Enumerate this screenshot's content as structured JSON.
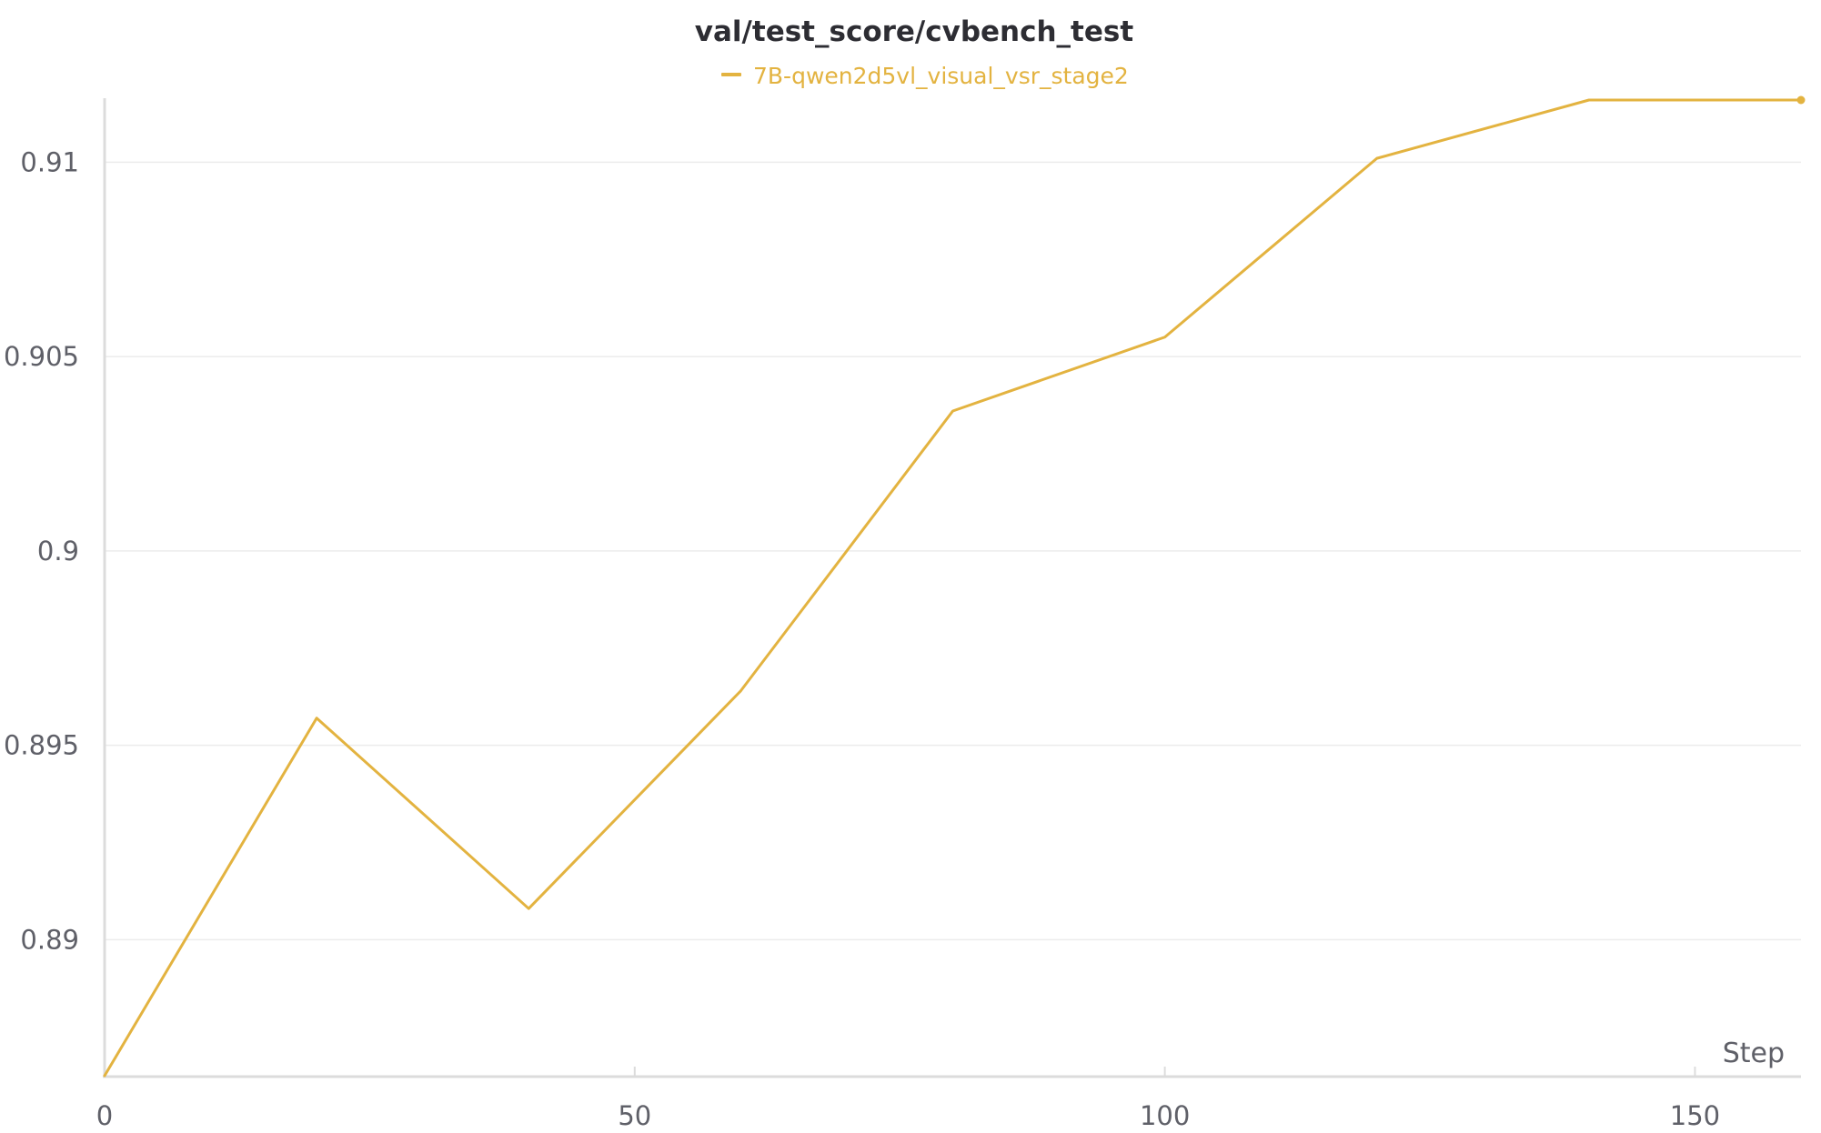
{
  "colors": {
    "series": "#e3b340",
    "grid": "#ececec",
    "axis": "#dcdcdc",
    "text": "#5f6068",
    "title": "#2d2d33"
  },
  "chart_data": {
    "type": "line",
    "title": "val/test_score/cvbench_test",
    "xlabel": "Step",
    "ylabel": "",
    "xlim": [
      0,
      160
    ],
    "ylim": [
      0.8865,
      0.9116
    ],
    "x_ticks": [
      {
        "value": 0,
        "label": "0"
      },
      {
        "value": 50,
        "label": "50"
      },
      {
        "value": 100,
        "label": "100"
      },
      {
        "value": 150,
        "label": "150"
      }
    ],
    "y_ticks": [
      {
        "value": 0.89,
        "label": "0.89"
      },
      {
        "value": 0.895,
        "label": "0.895"
      },
      {
        "value": 0.9,
        "label": "0.9"
      },
      {
        "value": 0.905,
        "label": "0.905"
      },
      {
        "value": 0.91,
        "label": "0.91"
      }
    ],
    "grid": true,
    "legend_position": "top-center",
    "series": [
      {
        "name": "7B-qwen2d5vl_visual_vsr_stage2",
        "color": "#e3b340",
        "x": [
          0,
          20,
          40,
          60,
          80,
          100,
          120,
          140,
          160
        ],
        "y": [
          0.8865,
          0.8957,
          0.8908,
          0.8964,
          0.9036,
          0.9055,
          0.9101,
          0.9116,
          0.9116
        ]
      }
    ]
  }
}
